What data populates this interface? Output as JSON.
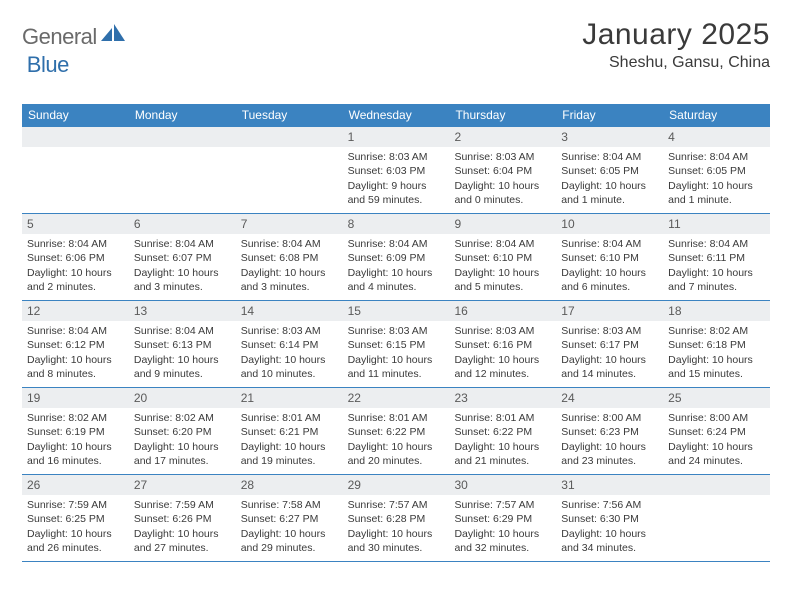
{
  "brand": {
    "part1": "General",
    "part2": "Blue"
  },
  "title": "January 2025",
  "location": "Sheshu, Gansu, China",
  "header_bg": "#3b83c1",
  "weekdays": [
    "Sunday",
    "Monday",
    "Tuesday",
    "Wednesday",
    "Thursday",
    "Friday",
    "Saturday"
  ],
  "colors": {
    "header_bg": "#3b83c1",
    "daynum_bg": "#eceef0",
    "text": "#3a3a3a",
    "brand_gray": "#6a6a6a",
    "brand_blue": "#2f6fab"
  },
  "weeks": [
    [
      {
        "empty": true
      },
      {
        "empty": true
      },
      {
        "empty": true
      },
      {
        "num": "1",
        "sunrise": "Sunrise: 8:03 AM",
        "sunset": "Sunset: 6:03 PM",
        "daylight": "Daylight: 9 hours and 59 minutes."
      },
      {
        "num": "2",
        "sunrise": "Sunrise: 8:03 AM",
        "sunset": "Sunset: 6:04 PM",
        "daylight": "Daylight: 10 hours and 0 minutes."
      },
      {
        "num": "3",
        "sunrise": "Sunrise: 8:04 AM",
        "sunset": "Sunset: 6:05 PM",
        "daylight": "Daylight: 10 hours and 1 minute."
      },
      {
        "num": "4",
        "sunrise": "Sunrise: 8:04 AM",
        "sunset": "Sunset: 6:05 PM",
        "daylight": "Daylight: 10 hours and 1 minute."
      }
    ],
    [
      {
        "num": "5",
        "sunrise": "Sunrise: 8:04 AM",
        "sunset": "Sunset: 6:06 PM",
        "daylight": "Daylight: 10 hours and 2 minutes."
      },
      {
        "num": "6",
        "sunrise": "Sunrise: 8:04 AM",
        "sunset": "Sunset: 6:07 PM",
        "daylight": "Daylight: 10 hours and 3 minutes."
      },
      {
        "num": "7",
        "sunrise": "Sunrise: 8:04 AM",
        "sunset": "Sunset: 6:08 PM",
        "daylight": "Daylight: 10 hours and 3 minutes."
      },
      {
        "num": "8",
        "sunrise": "Sunrise: 8:04 AM",
        "sunset": "Sunset: 6:09 PM",
        "daylight": "Daylight: 10 hours and 4 minutes."
      },
      {
        "num": "9",
        "sunrise": "Sunrise: 8:04 AM",
        "sunset": "Sunset: 6:10 PM",
        "daylight": "Daylight: 10 hours and 5 minutes."
      },
      {
        "num": "10",
        "sunrise": "Sunrise: 8:04 AM",
        "sunset": "Sunset: 6:10 PM",
        "daylight": "Daylight: 10 hours and 6 minutes."
      },
      {
        "num": "11",
        "sunrise": "Sunrise: 8:04 AM",
        "sunset": "Sunset: 6:11 PM",
        "daylight": "Daylight: 10 hours and 7 minutes."
      }
    ],
    [
      {
        "num": "12",
        "sunrise": "Sunrise: 8:04 AM",
        "sunset": "Sunset: 6:12 PM",
        "daylight": "Daylight: 10 hours and 8 minutes."
      },
      {
        "num": "13",
        "sunrise": "Sunrise: 8:04 AM",
        "sunset": "Sunset: 6:13 PM",
        "daylight": "Daylight: 10 hours and 9 minutes."
      },
      {
        "num": "14",
        "sunrise": "Sunrise: 8:03 AM",
        "sunset": "Sunset: 6:14 PM",
        "daylight": "Daylight: 10 hours and 10 minutes."
      },
      {
        "num": "15",
        "sunrise": "Sunrise: 8:03 AM",
        "sunset": "Sunset: 6:15 PM",
        "daylight": "Daylight: 10 hours and 11 minutes."
      },
      {
        "num": "16",
        "sunrise": "Sunrise: 8:03 AM",
        "sunset": "Sunset: 6:16 PM",
        "daylight": "Daylight: 10 hours and 12 minutes."
      },
      {
        "num": "17",
        "sunrise": "Sunrise: 8:03 AM",
        "sunset": "Sunset: 6:17 PM",
        "daylight": "Daylight: 10 hours and 14 minutes."
      },
      {
        "num": "18",
        "sunrise": "Sunrise: 8:02 AM",
        "sunset": "Sunset: 6:18 PM",
        "daylight": "Daylight: 10 hours and 15 minutes."
      }
    ],
    [
      {
        "num": "19",
        "sunrise": "Sunrise: 8:02 AM",
        "sunset": "Sunset: 6:19 PM",
        "daylight": "Daylight: 10 hours and 16 minutes."
      },
      {
        "num": "20",
        "sunrise": "Sunrise: 8:02 AM",
        "sunset": "Sunset: 6:20 PM",
        "daylight": "Daylight: 10 hours and 17 minutes."
      },
      {
        "num": "21",
        "sunrise": "Sunrise: 8:01 AM",
        "sunset": "Sunset: 6:21 PM",
        "daylight": "Daylight: 10 hours and 19 minutes."
      },
      {
        "num": "22",
        "sunrise": "Sunrise: 8:01 AM",
        "sunset": "Sunset: 6:22 PM",
        "daylight": "Daylight: 10 hours and 20 minutes."
      },
      {
        "num": "23",
        "sunrise": "Sunrise: 8:01 AM",
        "sunset": "Sunset: 6:22 PM",
        "daylight": "Daylight: 10 hours and 21 minutes."
      },
      {
        "num": "24",
        "sunrise": "Sunrise: 8:00 AM",
        "sunset": "Sunset: 6:23 PM",
        "daylight": "Daylight: 10 hours and 23 minutes."
      },
      {
        "num": "25",
        "sunrise": "Sunrise: 8:00 AM",
        "sunset": "Sunset: 6:24 PM",
        "daylight": "Daylight: 10 hours and 24 minutes."
      }
    ],
    [
      {
        "num": "26",
        "sunrise": "Sunrise: 7:59 AM",
        "sunset": "Sunset: 6:25 PM",
        "daylight": "Daylight: 10 hours and 26 minutes."
      },
      {
        "num": "27",
        "sunrise": "Sunrise: 7:59 AM",
        "sunset": "Sunset: 6:26 PM",
        "daylight": "Daylight: 10 hours and 27 minutes."
      },
      {
        "num": "28",
        "sunrise": "Sunrise: 7:58 AM",
        "sunset": "Sunset: 6:27 PM",
        "daylight": "Daylight: 10 hours and 29 minutes."
      },
      {
        "num": "29",
        "sunrise": "Sunrise: 7:57 AM",
        "sunset": "Sunset: 6:28 PM",
        "daylight": "Daylight: 10 hours and 30 minutes."
      },
      {
        "num": "30",
        "sunrise": "Sunrise: 7:57 AM",
        "sunset": "Sunset: 6:29 PM",
        "daylight": "Daylight: 10 hours and 32 minutes."
      },
      {
        "num": "31",
        "sunrise": "Sunrise: 7:56 AM",
        "sunset": "Sunset: 6:30 PM",
        "daylight": "Daylight: 10 hours and 34 minutes."
      },
      {
        "empty": true
      }
    ]
  ]
}
